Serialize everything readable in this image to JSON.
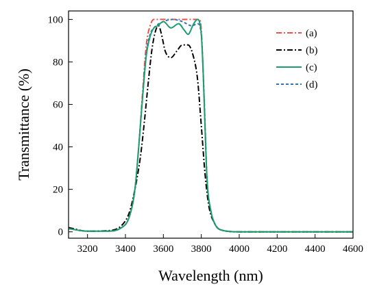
{
  "chart_data": {
    "type": "line",
    "xlabel": "Wavelength (nm)",
    "ylabel": "Transmittance (%)",
    "xlim": [
      3100,
      4600
    ],
    "ylim": [
      -3,
      104
    ],
    "xticks": [
      3200,
      3400,
      3600,
      3800,
      4000,
      4200,
      4400,
      4600
    ],
    "yticks": [
      0,
      20,
      40,
      60,
      80,
      100
    ],
    "grid": false,
    "legend_position": "top-right",
    "series": [
      {
        "name": "(a)",
        "color": "#e8524a",
        "dash": "dashdot",
        "x": [
          3100,
          3200,
          3300,
          3380,
          3420,
          3450,
          3470,
          3490,
          3510,
          3530,
          3550,
          3600,
          3650,
          3700,
          3750,
          3790,
          3800,
          3810,
          3820,
          3830,
          3850,
          3870,
          3900,
          4000,
          4200,
          4600
        ],
        "y": [
          1.5,
          0.3,
          0.3,
          2,
          7,
          20,
          40,
          65,
          88,
          97,
          100,
          100,
          100,
          100,
          100,
          100,
          95,
          75,
          50,
          25,
          10,
          4,
          1,
          0,
          0,
          0
        ]
      },
      {
        "name": "(b)",
        "color": "#000000",
        "dash": "dashdot",
        "x": [
          3100,
          3200,
          3300,
          3380,
          3420,
          3450,
          3480,
          3500,
          3520,
          3540,
          3560,
          3575,
          3590,
          3610,
          3640,
          3670,
          3700,
          3730,
          3760,
          3780,
          3800,
          3820,
          3840,
          3870,
          3900,
          4000,
          4200,
          4600
        ],
        "y": [
          2,
          0.3,
          0.5,
          3,
          9,
          20,
          36,
          52,
          70,
          86,
          95,
          97,
          93,
          85,
          82,
          85,
          88,
          88,
          82,
          72,
          50,
          27,
          12,
          4,
          1,
          0,
          0,
          0
        ]
      },
      {
        "name": "(c)",
        "color": "#1a9e6e",
        "dash": "solid",
        "x": [
          3100,
          3200,
          3300,
          3380,
          3420,
          3450,
          3470,
          3490,
          3510,
          3530,
          3550,
          3570,
          3600,
          3640,
          3680,
          3710,
          3730,
          3760,
          3780,
          3790,
          3800,
          3810,
          3820,
          3830,
          3850,
          3870,
          3900,
          4000,
          4200,
          4600
        ],
        "y": [
          1.5,
          0.3,
          0.3,
          2,
          7,
          20,
          40,
          63,
          83,
          92,
          96,
          97,
          99,
          96,
          98,
          95,
          93,
          98,
          100,
          99,
          93,
          75,
          48,
          25,
          10,
          4,
          1,
          0,
          0,
          0
        ]
      },
      {
        "name": "(d)",
        "color": "#2e74b5",
        "dash": "dashed",
        "x": [
          3100,
          3200,
          3300,
          3380,
          3420,
          3450,
          3470,
          3490,
          3510,
          3530,
          3550,
          3600,
          3650,
          3700,
          3750,
          3780,
          3800,
          3810,
          3820,
          3830,
          3850,
          3870,
          3900,
          4000,
          4200,
          4600
        ],
        "y": [
          1.5,
          0.3,
          0.3,
          2,
          7,
          20,
          40,
          63,
          84,
          93,
          96,
          99,
          100,
          99,
          97,
          98,
          93,
          75,
          50,
          25,
          10,
          4,
          1,
          0,
          0,
          0
        ]
      }
    ]
  }
}
